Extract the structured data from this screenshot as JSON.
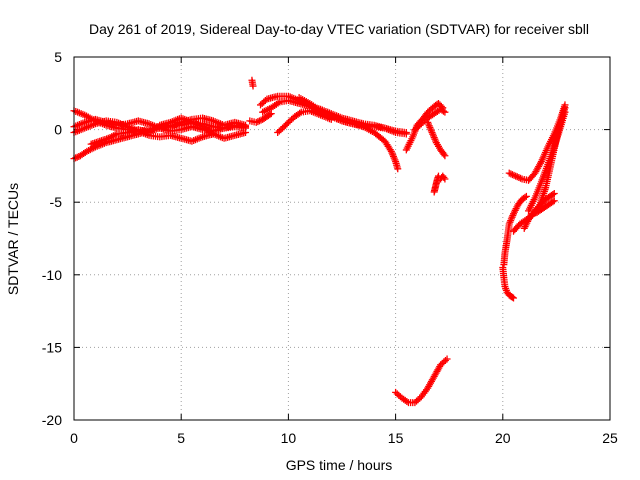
{
  "chart_data": {
    "type": "scatter",
    "title": "Day 261 of 2019, Sidereal Day-to-day VTEC variation (SDTVAR) for receiver sbll",
    "xlabel": "GPS time / hours",
    "ylabel": "SDTVAR / TECUs",
    "xlim": [
      0,
      25
    ],
    "ylim": [
      -20,
      5
    ],
    "xticks": [
      0,
      5,
      10,
      15,
      20,
      25
    ],
    "yticks": [
      5,
      0,
      -5,
      -10,
      -15,
      -20
    ],
    "grid": true,
    "marker": "plus",
    "series": [
      {
        "name": "SDTVAR",
        "color": "#ff0000",
        "tracks": [
          {
            "x": [
              0.0,
              0.5,
              1.0,
              1.5,
              2.0,
              2.5,
              3.0,
              3.5,
              4.0,
              4.5,
              5.0,
              5.5,
              6.0,
              6.5,
              7.0,
              7.5,
              8.0
            ],
            "y": [
              1.3,
              1.0,
              0.6,
              0.3,
              0.1,
              0.0,
              -0.1,
              0.0,
              0.2,
              0.3,
              0.3,
              0.5,
              0.4,
              0.2,
              0.1,
              0.2,
              0.1
            ]
          },
          {
            "x": [
              0.0,
              0.5,
              1.0,
              1.5,
              2.0,
              2.5,
              3.0,
              3.5,
              4.0,
              4.5,
              5.0,
              5.5,
              6.0,
              6.5,
              7.0,
              7.5,
              8.0
            ],
            "y": [
              -0.2,
              0.1,
              0.4,
              0.6,
              0.5,
              0.2,
              -0.1,
              -0.4,
              -0.5,
              -0.4,
              -0.6,
              -0.8,
              -0.5,
              -0.3,
              -0.6,
              -0.4,
              -0.2
            ]
          },
          {
            "x": [
              0.0,
              0.3,
              0.6,
              1.0,
              1.5,
              2.0,
              2.5,
              3.0,
              3.5,
              4.0,
              4.5,
              5.0,
              5.5,
              6.0,
              6.5,
              7.0,
              7.5,
              8.0
            ],
            "y": [
              -2.0,
              -1.8,
              -1.5,
              -1.2,
              -0.9,
              -0.7,
              -0.5,
              -0.3,
              -0.1,
              0.1,
              0.2,
              0.5,
              0.7,
              0.8,
              0.6,
              0.3,
              0.5,
              0.3
            ]
          },
          {
            "x": [
              0.0,
              0.5,
              1.0,
              1.5,
              2.0,
              2.5,
              3.0,
              3.5,
              4.0,
              4.5,
              5.0,
              5.5,
              6.0,
              6.5,
              7.0,
              7.5,
              8.0
            ],
            "y": [
              0.2,
              0.5,
              0.7,
              0.5,
              0.3,
              0.4,
              0.6,
              0.4,
              0.1,
              -0.1,
              0.0,
              0.2,
              0.0,
              -0.1,
              0.1,
              0.3,
              0.2
            ]
          },
          {
            "x": [
              0.8,
              1.2,
              1.6,
              2.0,
              2.5,
              3.0,
              3.5,
              4.0,
              4.5,
              5.0,
              5.5,
              6.0,
              6.5
            ],
            "y": [
              -1.0,
              -0.8,
              -0.6,
              -0.3,
              -0.2,
              0.0,
              -0.2,
              0.3,
              0.5,
              0.8,
              0.5,
              0.2,
              -0.3
            ]
          },
          {
            "x": [
              8.3,
              8.35
            ],
            "y": [
              3.4,
              3.0
            ]
          },
          {
            "x": [
              8.2,
              8.5,
              8.8,
              9.0,
              9.2
            ],
            "y": [
              0.6,
              0.5,
              0.7,
              0.9,
              1.1
            ]
          },
          {
            "x": [
              8.7,
              9.0,
              9.5,
              10.0,
              10.5,
              11.0,
              11.5,
              12.0,
              12.5,
              13.0,
              13.5,
              14.0,
              14.5,
              15.0,
              15.5
            ],
            "y": [
              1.7,
              2.1,
              2.3,
              2.3,
              2.0,
              1.6,
              1.2,
              0.9,
              0.6,
              0.4,
              0.3,
              0.2,
              0.1,
              -0.1,
              -0.2
            ]
          },
          {
            "x": [
              8.8,
              9.2,
              9.6,
              10.0,
              10.5,
              11.0,
              11.5,
              12.0,
              12.5,
              13.0,
              13.5,
              14.0,
              14.5,
              15.0,
              15.5
            ],
            "y": [
              1.2,
              1.5,
              1.9,
              2.0,
              1.8,
              1.6,
              1.4,
              1.1,
              0.8,
              0.6,
              0.4,
              0.3,
              0.1,
              -0.2,
              -0.3
            ]
          },
          {
            "x": [
              9.5,
              9.8,
              10.0,
              10.3,
              10.6,
              11.0,
              11.5,
              12.0
            ],
            "y": [
              -0.2,
              0.2,
              0.5,
              0.9,
              1.2,
              1.3,
              1.0,
              0.7
            ]
          },
          {
            "x": [
              10.5,
              11.0,
              11.5,
              12.0,
              12.5,
              13.0,
              13.5,
              14.0,
              14.5,
              14.8,
              15.0,
              15.1
            ],
            "y": [
              2.2,
              1.8,
              1.3,
              0.9,
              0.6,
              0.4,
              0.2,
              -0.2,
              -0.8,
              -1.5,
              -2.2,
              -2.7
            ]
          },
          {
            "x": [
              15.5,
              15.8,
              16.0,
              16.3,
              16.5,
              16.8,
              17.0,
              17.2
            ],
            "y": [
              -1.4,
              -0.5,
              0.3,
              0.8,
              1.2,
              1.6,
              1.8,
              1.5
            ]
          },
          {
            "x": [
              15.9,
              16.2,
              16.5,
              16.8,
              17.1,
              17.3
            ],
            "y": [
              0.0,
              0.4,
              0.8,
              1.1,
              1.4,
              1.2
            ]
          },
          {
            "x": [
              16.5,
              16.7,
              16.9,
              17.1,
              17.3
            ],
            "y": [
              0.5,
              -0.2,
              -0.9,
              -1.4,
              -1.8
            ]
          },
          {
            "x": [
              16.8,
              16.85,
              16.9,
              16.95,
              17.0
            ],
            "y": [
              -4.3,
              -4.0,
              -3.7,
              -3.4,
              -3.2
            ]
          },
          {
            "x": [
              17.1,
              17.2,
              17.3
            ],
            "y": [
              -3.4,
              -3.2,
              -3.4
            ]
          },
          {
            "x": [
              15.0,
              15.3,
              15.6,
              15.9,
              16.2,
              16.5,
              16.8,
              17.1,
              17.4
            ],
            "y": [
              -18.1,
              -18.5,
              -18.8,
              -18.8,
              -18.4,
              -17.8,
              -17.0,
              -16.2,
              -15.8
            ]
          },
          {
            "x": [
              20.0,
              20.05,
              20.1,
              20.2,
              20.3,
              20.4,
              20.5
            ],
            "y": [
              -9.5,
              -10.2,
              -10.8,
              -11.2,
              -11.4,
              -11.5,
              -11.6
            ]
          },
          {
            "x": [
              20.05,
              20.1,
              20.2,
              20.3,
              20.5,
              20.7,
              20.9,
              21.1
            ],
            "y": [
              -9.3,
              -8.5,
              -7.6,
              -6.5,
              -5.8,
              -5.2,
              -4.8,
              -4.6
            ]
          },
          {
            "x": [
              20.3,
              20.6,
              20.9,
              21.2,
              21.5,
              21.8,
              22.1,
              22.4,
              22.7,
              22.9
            ],
            "y": [
              -3.0,
              -3.2,
              -3.4,
              -3.5,
              -3.0,
              -2.2,
              -1.2,
              -0.3,
              0.8,
              1.7
            ]
          },
          {
            "x": [
              20.5,
              20.8,
              21.1,
              21.4,
              21.7,
              22.0,
              22.3,
              22.6,
              22.9
            ],
            "y": [
              -7.0,
              -6.5,
              -6.2,
              -5.8,
              -5.3,
              -4.0,
              -2.0,
              0.0,
              1.5
            ]
          },
          {
            "x": [
              21.2,
              21.5,
              21.8,
              22.1,
              22.4,
              22.7,
              22.9
            ],
            "y": [
              -5.6,
              -4.7,
              -3.6,
              -2.4,
              -1.2,
              0.2,
              1.2
            ]
          },
          {
            "x": [
              21.0,
              21.2,
              21.4,
              21.6,
              21.8,
              22.0,
              22.2,
              22.4
            ],
            "y": [
              -6.8,
              -6.2,
              -5.8,
              -5.4,
              -5.1,
              -4.8,
              -4.6,
              -4.4
            ]
          },
          {
            "x": [
              21.4,
              21.6,
              21.8,
              22.0,
              22.2,
              22.4
            ],
            "y": [
              -5.8,
              -5.7,
              -5.5,
              -5.3,
              -5.1,
              -4.9
            ]
          }
        ]
      }
    ]
  }
}
